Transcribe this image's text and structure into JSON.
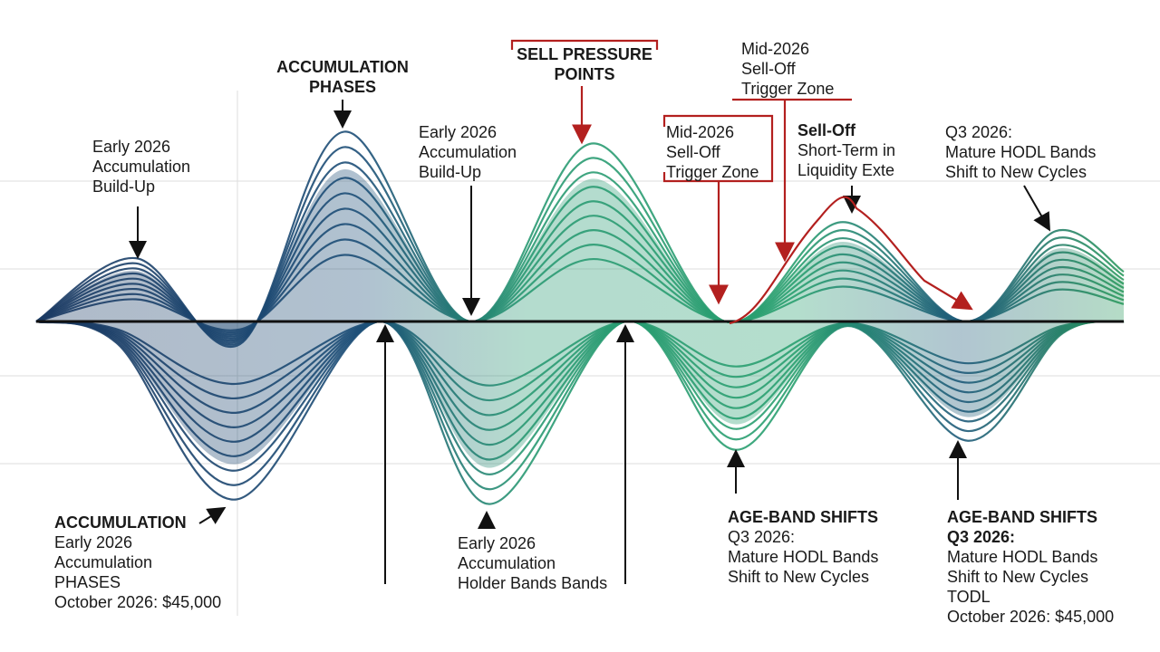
{
  "annotations": [
    {
      "lines": [
        "Early 2026",
        "Accumulation",
        "Build-Up"
      ]
    },
    {
      "heading": "ACCUMULATION",
      "lines": [
        "PHASES"
      ]
    },
    {
      "lines": [
        "Early 2026",
        "Accumulation",
        "Build-Up"
      ]
    },
    {
      "heading": "SELL PRESSURE",
      "lines": [
        "POINTS"
      ]
    },
    {
      "lines": [
        "Mid-2026",
        "Sell-Off",
        "Trigger Zone"
      ]
    },
    {
      "lines": [
        "Mid-2026",
        "Sell-Off",
        "Trigger Zone"
      ]
    },
    {
      "heading": "Sell-Off",
      "lines": [
        "Short-Term in",
        "Liquidity Exte"
      ]
    },
    {
      "lines": [
        "Q3 2026:",
        "Mature HODL Bands",
        "Shift to New Cycles"
      ]
    },
    {
      "heading": "ACCUMULATION",
      "lines": [
        "Early 2026",
        "Accumulation",
        "PHASES",
        "October 2026: $45,000"
      ]
    },
    {
      "lines": [
        "Early 2026",
        "Accumulation",
        "Holder Bands Bands"
      ]
    },
    {
      "heading": "AGE-BAND SHIFTS",
      "lines": [
        "Q3 2026:",
        "Mature HODL Bands",
        "Shift to New Cycles"
      ]
    },
    {
      "heading": "AGE-BAND SHIFTS",
      "lines": [
        "Q3 2026:",
        "Mature HODL Bands",
        "Shift to New Cycles",
        "TODL",
        "October 2026: $45,000"
      ]
    }
  ]
}
